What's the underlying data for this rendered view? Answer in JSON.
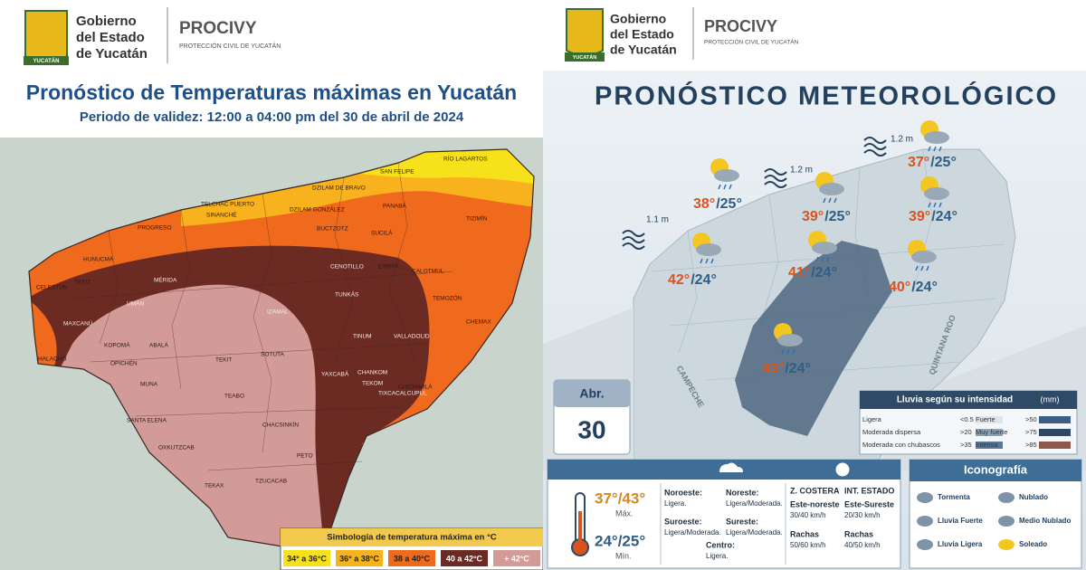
{
  "left_panel": {
    "header": {
      "org_line1": "Gobierno",
      "org_line2": "del Estado",
      "org_line3": "de Yucatán",
      "logo_label": "YUCATÁN",
      "agency": "PROCIVY",
      "agency_sub": "PROTECCIÓN CIVIL DE YUCATÁN"
    },
    "title": "Pronóstico de Temperaturas máximas en Yucatán",
    "subtitle": "Periodo de validez: 12:00 a 04:00 pm del 30 de abril de 2024",
    "municipalities": [
      "RÍO LAGARTOS",
      "SAN FELIPE",
      "DZILAM DE BRAVO",
      "TELCHAC PUERTO",
      "SINANCHÉ",
      "DZILAM GONZÁLEZ",
      "PROGRESO",
      "PANABÁ",
      "TIZIMÍN",
      "BUCTZOTZ",
      "SUCILÁ",
      "HUNUCMÁ",
      "CELESTÚN",
      "TETIZ",
      "UMÁN",
      "MÉRIDA",
      "IZAMAL",
      "CENOTILLO",
      "ESPITA",
      "CALOTMUL",
      "TEMOZÓN",
      "CHEMAX",
      "VALLADOLID",
      "TUNKÁS",
      "TINUM",
      "HALACHÓ",
      "MAXCANÚ",
      "KOPOMÁ",
      "ABALÁ",
      "OPICHÉN",
      "MUNA",
      "TEKIT",
      "SOTUTA",
      "YAXCABÁ",
      "CHANKOM",
      "TEKOM",
      "CHICHIMILÁ",
      "TIXCACALCUPUL",
      "SANTA ELENA",
      "TEABO",
      "CHACSINKÍN",
      "OXKUTZCAB",
      "PETO",
      "TEKAX",
      "TZUCACAB"
    ],
    "legend": {
      "title": "Simbología de temperatura máxima en °C",
      "items": [
        {
          "label": "34° a 36°C",
          "color": "#f6e11b"
        },
        {
          "label": "36° a 38°C",
          "color": "#f7b21d"
        },
        {
          "label": "38 a 40°C",
          "color": "#ef6a1d"
        },
        {
          "label": "40 a 42°C",
          "color": "#6b2a22"
        },
        {
          "label": "+ 42°C",
          "color": "#d39b98"
        }
      ]
    }
  },
  "right_panel": {
    "header": {
      "org_line1": "Gobierno",
      "org_line2": "del Estado",
      "org_line3": "de Yucatán",
      "logo_label": "YUCATÁN",
      "agency": "PROCIVY",
      "agency_sub": "PROTECCIÓN CIVIL DE YUCATÁN"
    },
    "title": "PRONÓSTICO METEOROLÓGICO",
    "waves": [
      "1.1 m",
      "1.2 m",
      "1.2 m"
    ],
    "forecasts": [
      {
        "max": "37°",
        "min": "/25°"
      },
      {
        "max": "38°",
        "min": "/25°"
      },
      {
        "max": "39°",
        "min": "/25°"
      },
      {
        "max": "39°",
        "min": "/24°"
      },
      {
        "max": "42°",
        "min": "/24°"
      },
      {
        "max": "41°",
        "min": "/24°"
      },
      {
        "max": "40°",
        "min": "/24°"
      },
      {
        "max": "43°",
        "min": "/24°"
      }
    ],
    "states": [
      "CAMPECHE",
      "QUINTANA ROO"
    ],
    "date": {
      "month": "Abr.",
      "day": "30"
    },
    "rain_legend": {
      "title": "Lluvia según su intensidad",
      "unit": "(mm)",
      "items": [
        {
          "label": "Ligera",
          "threshold": "<0.5"
        },
        {
          "label": "Moderada dispersa",
          "threshold": ">20"
        },
        {
          "label": "Moderada con chubascos",
          "threshold": ">35"
        },
        {
          "label": "Fuerte",
          "threshold": ">50"
        },
        {
          "label": "Muy fuerte",
          "threshold": ">75"
        },
        {
          "label": "Intensa",
          "threshold": ">85"
        }
      ]
    },
    "summary": {
      "temp_max": "37°/43°",
      "max_label": "Máx.",
      "temp_min": "24°/25°",
      "min_label": "Mín.",
      "winds": [
        {
          "region": "Noroeste:",
          "value": "Ligera."
        },
        {
          "region": "Noreste:",
          "value": "Ligera/Moderada."
        },
        {
          "region": "Suroeste:",
          "value": "Ligera/Moderada."
        },
        {
          "region": "Sureste:",
          "value": "Ligera/Moderada."
        },
        {
          "region": "Centro:",
          "value": "Ligera."
        }
      ],
      "coast": {
        "title": "Z. COSTERA",
        "direction": "Este-noreste",
        "speed": "30/40 km/h",
        "gust_label": "Rachas",
        "gust": "50/60 km/h"
      },
      "inland": {
        "title": "INT. ESTADO",
        "direction": "Este-Sureste",
        "speed": "20/30 km/h",
        "gust_label": "Rachas",
        "gust": "40/50 km/h"
      }
    },
    "icons": {
      "title": "Iconografía",
      "items": [
        "Tormenta",
        "Nublado",
        "Lluvia Fuerte",
        "Medio Nublado",
        "Lluvia Ligera",
        "Soleado"
      ]
    }
  }
}
